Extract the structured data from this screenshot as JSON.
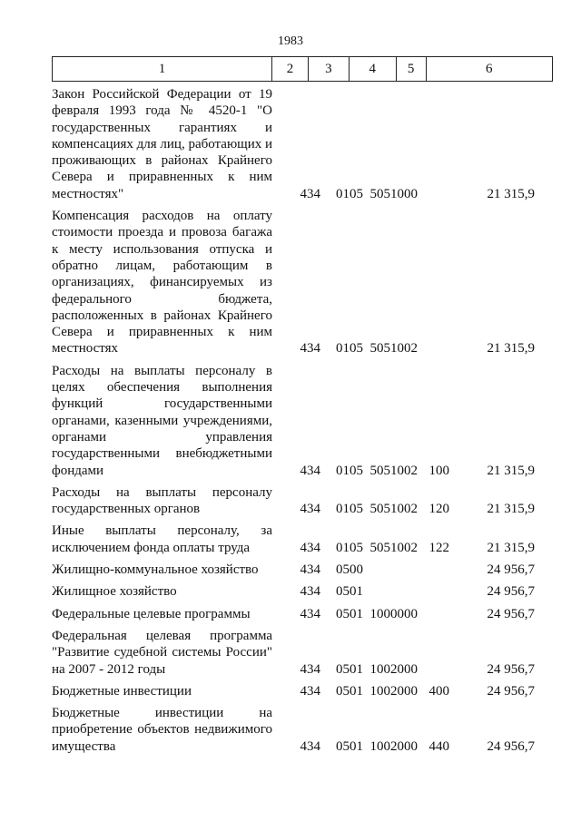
{
  "page_number": "1983",
  "header": [
    "1",
    "2",
    "3",
    "4",
    "5",
    "6"
  ],
  "rows": [
    {
      "desc": "Закон Российской Федерации от 19 февраля 1993 года № 4520-1 \"О государственных гарантиях и компенсациях для лиц, работающих и проживающих в районах Крайнего Севера и приравненных к ним местностях\"",
      "c2": "434",
      "c3": "0105",
      "c4": "5051000",
      "c5": "",
      "c6": "21 315,9"
    },
    {
      "desc": "Компенсация расходов на оплату стоимости проезда и провоза багажа к месту использования отпуска и обратно лицам, работающим в организациях, финансируемых из федерального бюджета, расположенных в районах Крайнего Севера и приравненных к ним местностях",
      "c2": "434",
      "c3": "0105",
      "c4": "5051002",
      "c5": "",
      "c6": "21 315,9"
    },
    {
      "desc": "Расходы на выплаты персоналу в целях обеспечения выполнения функций государственными органами, казенными учреждениями, органами управления государственными внебюджетными фондами",
      "c2": "434",
      "c3": "0105",
      "c4": "5051002",
      "c5": "100",
      "c6": "21 315,9"
    },
    {
      "desc": "Расходы на выплаты персоналу государственных органов",
      "c2": "434",
      "c3": "0105",
      "c4": "5051002",
      "c5": "120",
      "c6": "21 315,9"
    },
    {
      "desc": "Иные выплаты персоналу, за исключением фонда оплаты труда",
      "c2": "434",
      "c3": "0105",
      "c4": "5051002",
      "c5": "122",
      "c6": "21 315,9"
    },
    {
      "desc": "Жилищно-коммунальное хозяйство",
      "c2": "434",
      "c3": "0500",
      "c4": "",
      "c5": "",
      "c6": "24 956,7"
    },
    {
      "desc": "Жилищное хозяйство",
      "c2": "434",
      "c3": "0501",
      "c4": "",
      "c5": "",
      "c6": "24 956,7"
    },
    {
      "desc": "Федеральные целевые программы",
      "c2": "434",
      "c3": "0501",
      "c4": "1000000",
      "c5": "",
      "c6": "24 956,7"
    },
    {
      "desc": "Федеральная целевая программа \"Развитие судебной системы России\" на 2007 - 2012 годы",
      "c2": "434",
      "c3": "0501",
      "c4": "1002000",
      "c5": "",
      "c6": "24 956,7"
    },
    {
      "desc": "Бюджетные инвестиции",
      "c2": "434",
      "c3": "0501",
      "c4": "1002000",
      "c5": "400",
      "c6": "24 956,7"
    },
    {
      "desc": "Бюджетные инвестиции на приобретение объектов недвижимого имущества",
      "c2": "434",
      "c3": "0501",
      "c4": "1002000",
      "c5": "440",
      "c6": "24 956,7"
    }
  ]
}
